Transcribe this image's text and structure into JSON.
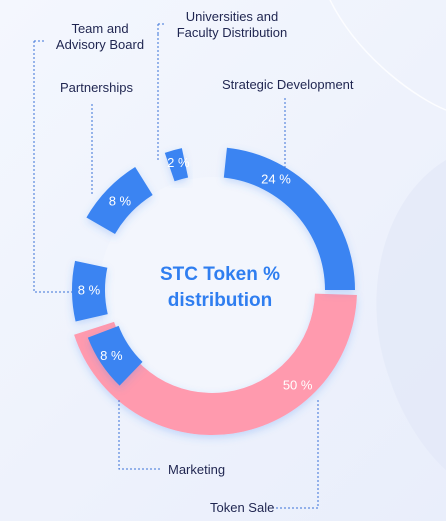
{
  "chart_data": {
    "type": "pie",
    "title": "STC Token %\ndistribution",
    "slices": [
      {
        "name": "Strategic Development",
        "value": 24,
        "label": "24 %",
        "color": "#3a84f2"
      },
      {
        "name": "Token Sale",
        "value": 50,
        "label": "50 %",
        "color": "#ff9aae"
      },
      {
        "name": "Marketing",
        "value": 8,
        "label": "8 %",
        "color": "#3a84f2"
      },
      {
        "name": "Team and Advisory Board",
        "value": 8,
        "label": "8 %",
        "color": "#3a84f2"
      },
      {
        "name": "Partnerships",
        "value": 8,
        "label": "8 %",
        "color": "#3a84f2"
      },
      {
        "name": "Universities and Faculty Distribution",
        "value": 2,
        "label": "2 %",
        "color": "#3a84f2"
      }
    ]
  },
  "legend_labels": {
    "team": "Team and\nAdvisory Board",
    "universities": "Universities and\nFaculty Distribution",
    "partnerships": "Partnerships",
    "strategic": "Strategic Development",
    "marketing": "Marketing",
    "token_sale": "Token Sale"
  }
}
